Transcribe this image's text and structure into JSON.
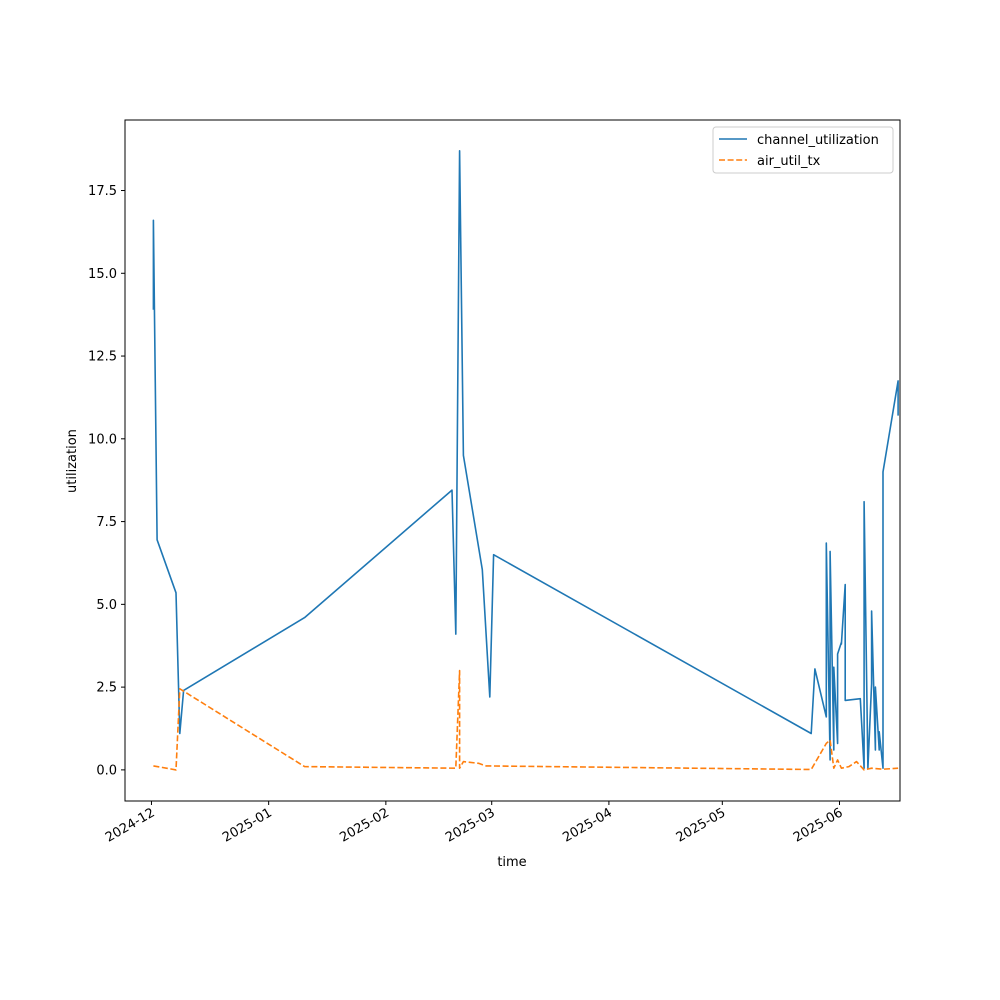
{
  "chart_data": {
    "type": "line",
    "title": "",
    "xlabel": "time",
    "ylabel": "utilization",
    "x_axis_type": "date",
    "xlim": [
      "2024-11-24",
      "2025-06-17"
    ],
    "ylim": [
      -0.94,
      19.63
    ],
    "x_ticks": [
      "2024-12",
      "2025-01",
      "2025-02",
      "2025-03",
      "2025-04",
      "2025-05",
      "2025-06"
    ],
    "y_ticks": [
      "0.0",
      "2.5",
      "5.0",
      "7.5",
      "10.0",
      "12.5",
      "15.0",
      "17.5"
    ],
    "grid": false,
    "legend_position": "top-right",
    "series": [
      {
        "name": "channel_utilization",
        "color": "#1f77b4",
        "line_style": "solid",
        "points": [
          [
            "2024-12-01",
            13.9
          ],
          [
            "2024-12-01",
            16.6
          ],
          [
            "2024-12-02",
            6.95
          ],
          [
            "2024-12-07",
            5.35
          ],
          [
            "2024-12-08",
            1.1
          ],
          [
            "2024-12-09",
            2.4
          ],
          [
            "2025-01-10",
            4.6
          ],
          [
            "2025-02-18",
            8.45
          ],
          [
            "2025-02-19",
            4.1
          ],
          [
            "2025-02-20",
            18.7
          ],
          [
            "2025-02-21",
            9.5
          ],
          [
            "2025-02-26",
            6.05
          ],
          [
            "2025-02-28",
            2.2
          ],
          [
            "2025-03-01",
            6.5
          ],
          [
            "2025-05-24",
            1.1
          ],
          [
            "2025-05-25",
            3.05
          ],
          [
            "2025-05-28",
            1.6
          ],
          [
            "2025-05-28",
            6.85
          ],
          [
            "2025-05-29",
            0.3
          ],
          [
            "2025-05-29",
            6.6
          ],
          [
            "2025-05-30",
            0.6
          ],
          [
            "2025-05-30",
            3.1
          ],
          [
            "2025-05-31",
            0.8
          ],
          [
            "2025-05-31",
            3.5
          ],
          [
            "2025-06-01",
            3.85
          ],
          [
            "2025-06-01",
            3.8
          ],
          [
            "2025-06-02",
            5.6
          ],
          [
            "2025-06-02",
            2.1
          ],
          [
            "2025-06-06",
            2.15
          ],
          [
            "2025-06-07",
            0.05
          ],
          [
            "2025-06-07",
            8.1
          ],
          [
            "2025-06-08",
            0.05
          ],
          [
            "2025-06-09",
            2.6
          ],
          [
            "2025-06-09",
            4.8
          ],
          [
            "2025-06-10",
            0.6
          ],
          [
            "2025-06-10",
            2.5
          ],
          [
            "2025-06-11",
            0.6
          ],
          [
            "2025-06-11",
            1.15
          ],
          [
            "2025-06-12",
            0.05
          ],
          [
            "2025-06-12",
            9.0
          ],
          [
            "2025-06-16",
            11.75
          ],
          [
            "2025-06-16",
            10.7
          ]
        ]
      },
      {
        "name": "air_util_tx",
        "color": "#ff7f0e",
        "line_style": "dashed",
        "points": [
          [
            "2024-12-01",
            0.12
          ],
          [
            "2024-12-07",
            0.0
          ],
          [
            "2024-12-08",
            2.45
          ],
          [
            "2025-01-10",
            0.1
          ],
          [
            "2025-02-19",
            0.05
          ],
          [
            "2025-02-20",
            3.0
          ],
          [
            "2025-02-20",
            0.05
          ],
          [
            "2025-02-21",
            0.25
          ],
          [
            "2025-02-25",
            0.2
          ],
          [
            "2025-02-27",
            0.12
          ],
          [
            "2025-05-24",
            0.01
          ],
          [
            "2025-05-28",
            0.8
          ],
          [
            "2025-05-29",
            0.9
          ],
          [
            "2025-05-30",
            0.05
          ],
          [
            "2025-05-31",
            0.3
          ],
          [
            "2025-06-01",
            0.05
          ],
          [
            "2025-06-03",
            0.1
          ],
          [
            "2025-06-05",
            0.25
          ],
          [
            "2025-06-07",
            0.0
          ],
          [
            "2025-06-09",
            0.05
          ],
          [
            "2025-06-12",
            0.02
          ],
          [
            "2025-06-16",
            0.05
          ]
        ]
      }
    ]
  }
}
